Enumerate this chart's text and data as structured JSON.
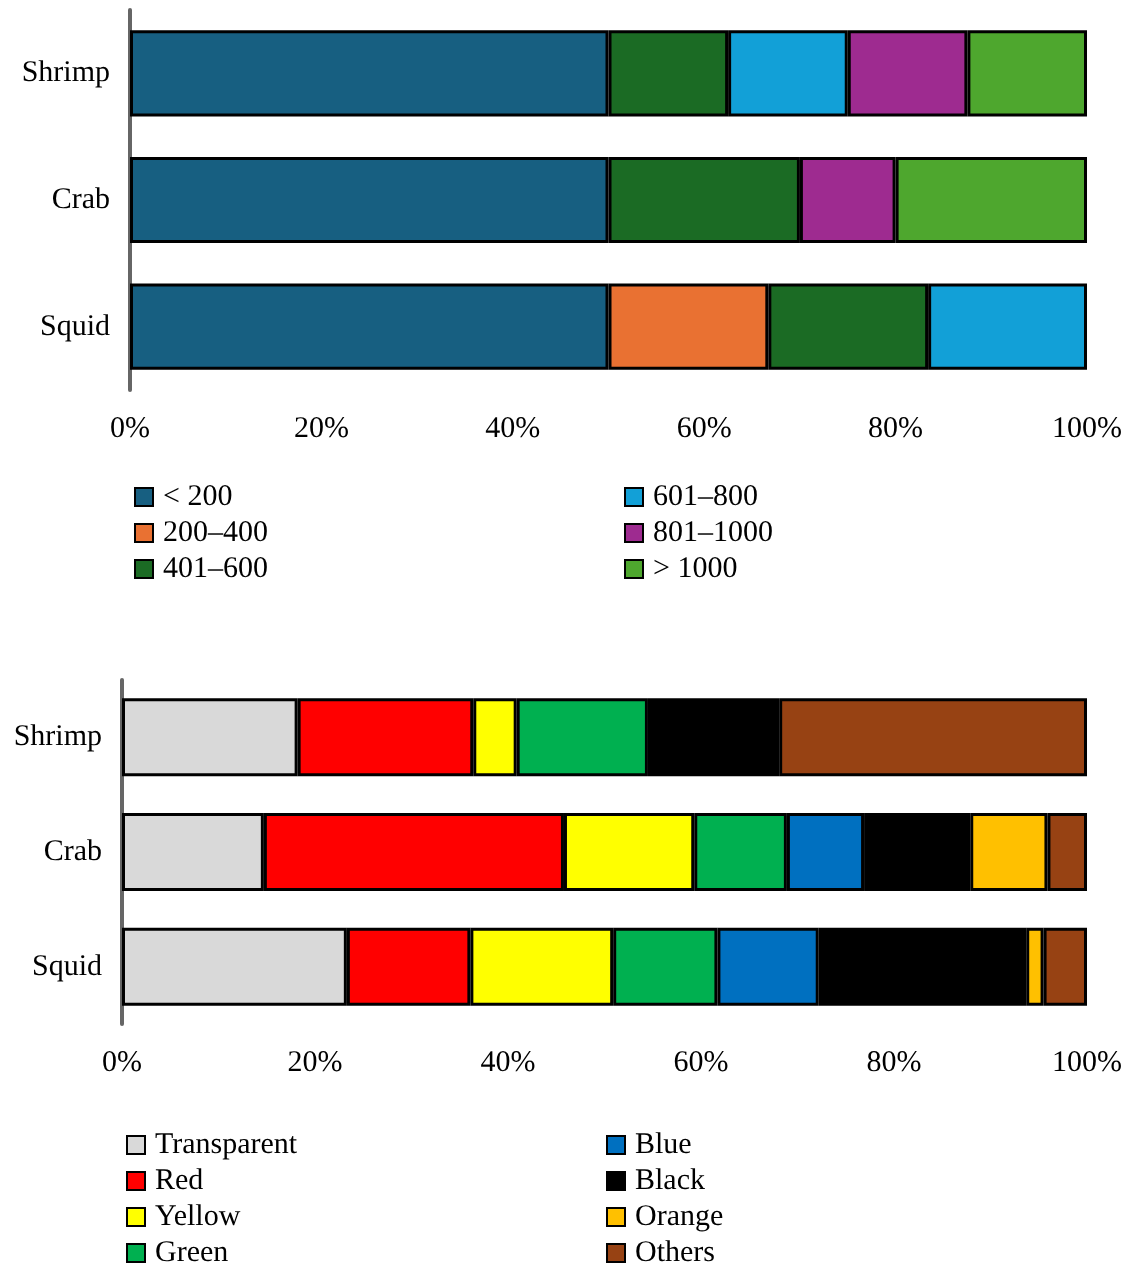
{
  "chart_data": [
    {
      "type": "bar",
      "orientation": "horizontal",
      "stacked": true,
      "categories": [
        "Shrimp",
        "Crab",
        "Squid"
      ],
      "xlim": [
        0,
        100
      ],
      "xticks": [
        {
          "value": 0,
          "label": "0%"
        },
        {
          "value": 20,
          "label": "20%"
        },
        {
          "value": 40,
          "label": "40%"
        },
        {
          "value": 60,
          "label": "60%"
        },
        {
          "value": 80,
          "label": "80%"
        },
        {
          "value": 100,
          "label": "100%"
        }
      ],
      "grid": false,
      "legend": "bottom",
      "series": [
        {
          "name": "< 200",
          "color": "#175f81",
          "values": [
            50,
            50,
            50
          ]
        },
        {
          "name": "200–400",
          "color": "#e97132",
          "values": [
            0,
            0,
            16.7
          ]
        },
        {
          "name": "401–600",
          "color": "#1b6b24",
          "values": [
            12.5,
            20,
            16.7
          ]
        },
        {
          "name": "601–800",
          "color": "#12a0d7",
          "values": [
            12.5,
            0,
            16.6
          ]
        },
        {
          "name": "801–1000",
          "color": "#9e2b90",
          "values": [
            12.5,
            10,
            0
          ]
        },
        {
          "name": "> 1000",
          "color": "#4ea72e",
          "values": [
            12.5,
            20,
            0
          ]
        }
      ]
    },
    {
      "type": "bar",
      "orientation": "horizontal",
      "stacked": true,
      "categories": [
        "Shrimp",
        "Crab",
        "Squid"
      ],
      "xlim": [
        0,
        100
      ],
      "xticks": [
        {
          "value": 0,
          "label": "0%"
        },
        {
          "value": 20,
          "label": "20%"
        },
        {
          "value": 40,
          "label": "40%"
        },
        {
          "value": 60,
          "label": "60%"
        },
        {
          "value": 80,
          "label": "80%"
        },
        {
          "value": 100,
          "label": "100%"
        }
      ],
      "grid": false,
      "legend": "bottom",
      "series": [
        {
          "name": "Transparent",
          "color": "#d9d9d9",
          "values": [
            18.2,
            14.7,
            23.3
          ]
        },
        {
          "name": "Red",
          "color": "#ff0000",
          "values": [
            18.2,
            31.1,
            12.8
          ]
        },
        {
          "name": "Yellow",
          "color": "#ffff00",
          "values": [
            4.5,
            13.5,
            14.8
          ]
        },
        {
          "name": "Green",
          "color": "#00b050",
          "values": [
            13.6,
            9.6,
            10.8
          ]
        },
        {
          "name": "Blue",
          "color": "#0070c0",
          "values": [
            0,
            8.0,
            10.5
          ]
        },
        {
          "name": "Black",
          "color": "#000000",
          "values": [
            13.6,
            11.0,
            21.5
          ]
        },
        {
          "name": "Orange",
          "color": "#ffc000",
          "values": [
            0,
            8.0,
            1.8
          ]
        },
        {
          "name": "Others",
          "color": "#974213",
          "values": [
            31.9,
            4.1,
            4.5
          ]
        }
      ]
    }
  ]
}
